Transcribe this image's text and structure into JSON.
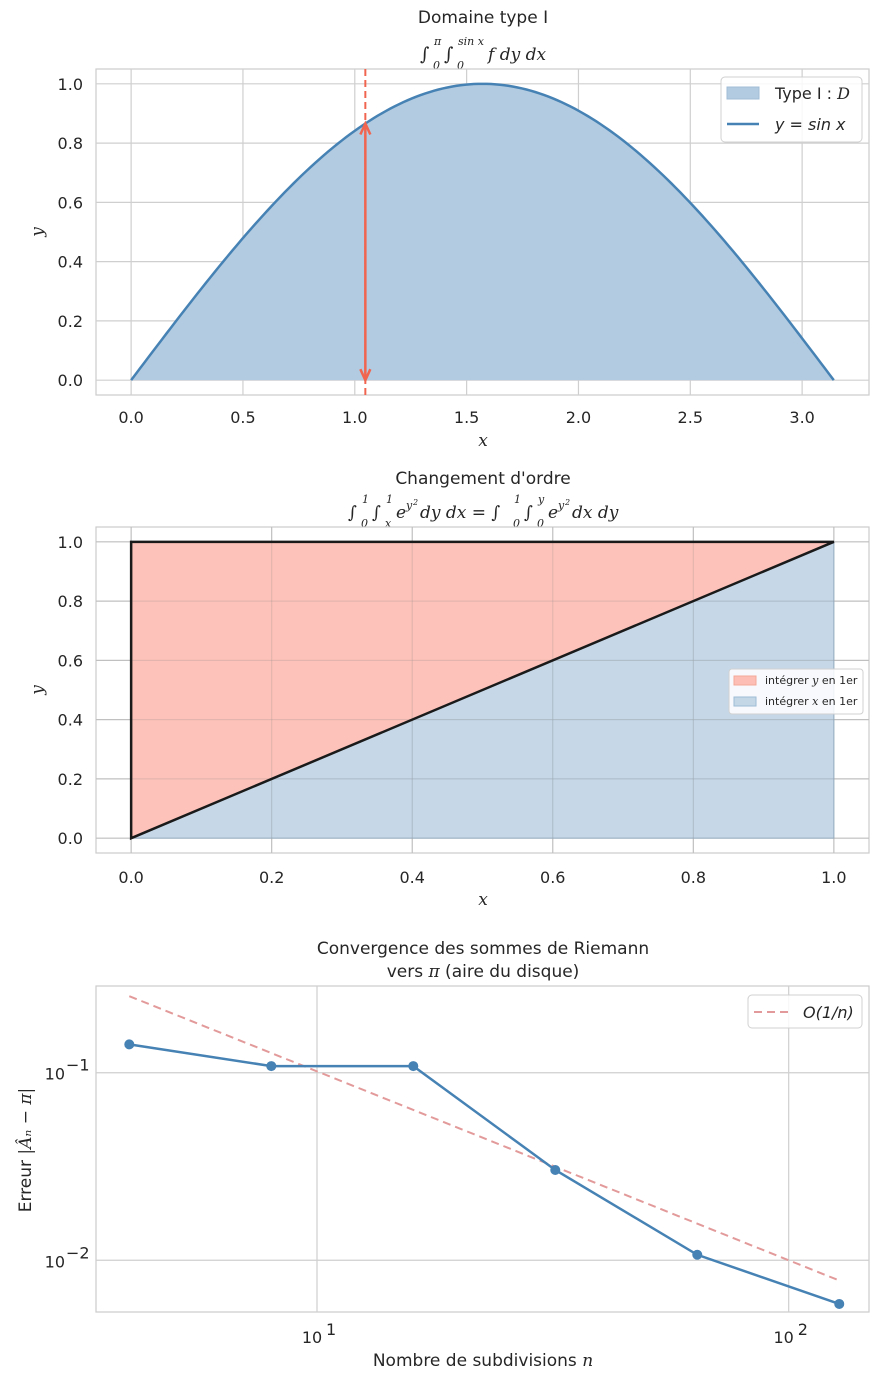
{
  "chart_data": [
    {
      "type": "area",
      "title": "Domaine type I",
      "subtitle": "∫₀^π ∫₀^sin x f dy dx",
      "subtitle_parts": {
        "outer_upper": "π",
        "outer_lower": "0",
        "inner_upper": "sin x",
        "inner_lower": "0",
        "body": "f dy dx"
      },
      "xlabel": "x",
      "ylabel": "y",
      "xlim": [
        -0.157,
        3.299
      ],
      "ylim": [
        -0.05,
        1.05
      ],
      "xticks": [
        0.0,
        0.5,
        1.0,
        1.5,
        2.0,
        2.5,
        3.0
      ],
      "xtick_labels": [
        "0.0",
        "0.5",
        "1.0",
        "1.5",
        "2.0",
        "2.5",
        "3.0"
      ],
      "yticks": [
        0.0,
        0.2,
        0.4,
        0.6,
        0.8,
        1.0
      ],
      "ytick_labels": [
        "0.0",
        "0.2",
        "0.4",
        "0.6",
        "0.8",
        "1.0"
      ],
      "curve": {
        "function": "sin",
        "x_start": 0,
        "x_end": 3.14159
      },
      "marker_x": 1.0472,
      "marker_y_top": 0.866,
      "legend": [
        {
          "label": "Type I : ",
          "math": "D",
          "kind": "patch",
          "color": "#b3cbe0"
        },
        {
          "label": "",
          "math": "y = sin x",
          "kind": "line",
          "color": "#4682b4"
        }
      ],
      "legend_position": "top-right",
      "colors": {
        "fill": "#b3cbe0",
        "line": "#4682b4",
        "marker": "#f06550"
      }
    },
    {
      "type": "area",
      "title": "Changement d'ordre",
      "subtitle": "∫₀¹ ∫ₓ¹ e^(y²) dy dx = ∫₀¹ ∫₀^y e^(y²) dx dy",
      "xlabel": "x",
      "ylabel": "y",
      "xlim": [
        -0.05,
        1.05
      ],
      "ylim": [
        -0.05,
        1.05
      ],
      "xticks": [
        0.0,
        0.2,
        0.4,
        0.6,
        0.8,
        1.0
      ],
      "xtick_labels": [
        "0.0",
        "0.2",
        "0.4",
        "0.6",
        "0.8",
        "1.0"
      ],
      "yticks": [
        0.0,
        0.2,
        0.4,
        0.6,
        0.8,
        1.0
      ],
      "ytick_labels": [
        "0.0",
        "0.2",
        "0.4",
        "0.6",
        "0.8",
        "1.0"
      ],
      "regions": [
        {
          "name": "intégrer y en 1er",
          "polygon": [
            [
              0,
              0
            ],
            [
              0,
              1
            ],
            [
              1,
              1
            ]
          ],
          "color": "#fdbfb5"
        },
        {
          "name": "intégrer x en 1er",
          "polygon": [
            [
              0,
              0
            ],
            [
              1,
              0
            ],
            [
              1,
              1
            ]
          ],
          "color": "#c4d7e7"
        }
      ],
      "legend": [
        {
          "label_before": "intégrer ",
          "math": "y",
          "label_after": " en 1er",
          "color": "#fdbfb5"
        },
        {
          "label_before": "intégrer ",
          "math": "x",
          "label_after": " en 1er",
          "color": "#c4d7e7"
        }
      ],
      "legend_position": "center-right"
    },
    {
      "type": "line",
      "title": "Convergence des sommes de Riemann",
      "title_line2_before": "vers ",
      "title_line2_math": "π",
      "title_line2_after": " (aire du disque)",
      "xlabel_text": "Nombre de subdivisions ",
      "xlabel_math": "n",
      "ylabel_text": "Erreur ",
      "ylabel_math": "|Âₙ − π|",
      "xscale": "log",
      "yscale": "log",
      "xlim": [
        3.4,
        148
      ],
      "ylim": [
        0.0053,
        0.29
      ],
      "xtick_values": [
        10,
        100
      ],
      "xtick_bases": [
        "10",
        "10"
      ],
      "xtick_exps": [
        "1",
        "2"
      ],
      "ytick_values": [
        0.1,
        0.01
      ],
      "ytick_bases": [
        "10",
        "10"
      ],
      "ytick_exps": [
        "−1",
        "−2"
      ],
      "series": [
        {
          "name": "erreur",
          "x": [
            4,
            8,
            16,
            32,
            64,
            128
          ],
          "y": [
            0.1416,
            0.1085,
            0.1085,
            0.0303,
            0.0107,
            0.00585
          ],
          "color": "#4682b4"
        },
        {
          "name": "O(1/n)",
          "x": [
            4,
            128
          ],
          "y": [
            0.256,
            0.0078
          ],
          "color": "#e39a9a",
          "dashed": true
        }
      ],
      "legend": [
        {
          "math": "O(1/n)",
          "color": "#e39a9a"
        }
      ],
      "legend_position": "top-right"
    }
  ]
}
